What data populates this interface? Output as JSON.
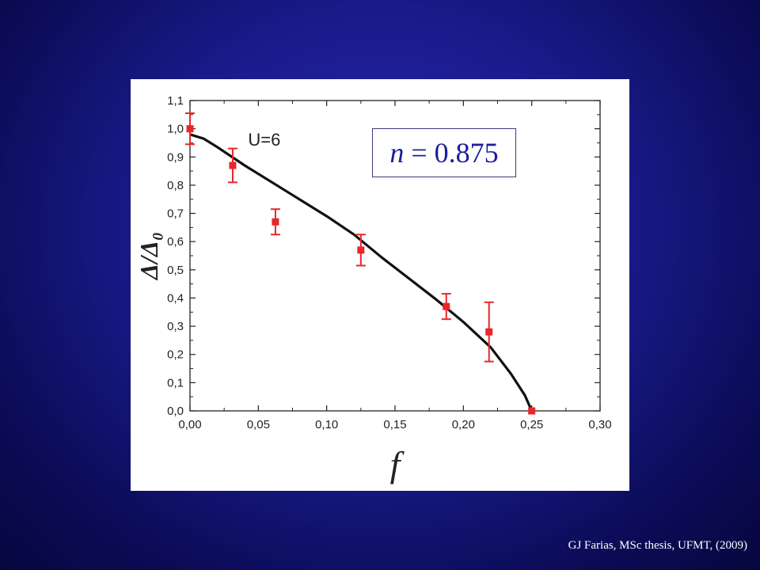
{
  "slide": {
    "annotation": {
      "variable": "n",
      "rest": " = 0.875"
    },
    "citation": "GJ Farias, MSc thesis, UFMT, (2009)"
  },
  "colors": {
    "background": "#1a1a8a",
    "data_points": "#e8262b",
    "fit_line": "#111111",
    "annotation_text": "#1c1ca0"
  },
  "chart_data": {
    "type": "scatter",
    "xlabel": "f",
    "ylabel": "Δ/Δ₀",
    "xlim": [
      0.0,
      0.3
    ],
    "ylim": [
      0.0,
      1.1
    ],
    "x_ticks": [
      "0,00",
      "0,05",
      "0,10",
      "0,15",
      "0,20",
      "0,25",
      "0,30"
    ],
    "y_ticks": [
      "0,0",
      "0,1",
      "0,2",
      "0,3",
      "0,4",
      "0,5",
      "0,6",
      "0,7",
      "0,8",
      "0,9",
      "1,0",
      "1,1"
    ],
    "annotations": [
      "U=6"
    ],
    "grid": false,
    "series": [
      {
        "kind": "points_with_error_bars",
        "x": [
          0.0,
          0.03125,
          0.0625,
          0.125,
          0.1875,
          0.21875,
          0.25
        ],
        "y": [
          1.0,
          0.87,
          0.67,
          0.57,
          0.37,
          0.28,
          0.0
        ],
        "yerr": [
          0.055,
          0.06,
          0.045,
          0.055,
          0.045,
          0.105,
          0.0
        ]
      },
      {
        "kind": "line",
        "x": [
          0.0,
          0.01,
          0.02,
          0.04,
          0.06,
          0.08,
          0.1,
          0.12,
          0.14,
          0.16,
          0.18,
          0.2,
          0.22,
          0.235,
          0.245,
          0.25
        ],
        "y": [
          0.98,
          0.965,
          0.935,
          0.87,
          0.81,
          0.75,
          0.69,
          0.625,
          0.545,
          0.47,
          0.395,
          0.315,
          0.225,
          0.13,
          0.055,
          0.0
        ]
      }
    ]
  }
}
